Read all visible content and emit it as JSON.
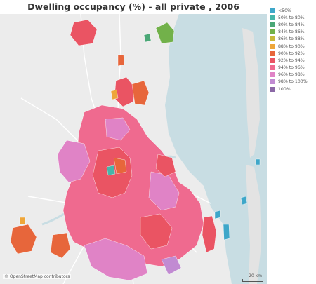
{
  "title": "Dwelling occupancy (%) - all private , 2006",
  "map": {
    "attribution": "© OpenStreetMap contributors",
    "scale_label": "20 km",
    "base_colors": {
      "land": "#ececec",
      "water": "#c8dde3",
      "roads": "#ffffff",
      "region_outline": "#ffffff"
    }
  },
  "legend": {
    "items": [
      {
        "label": "<50%",
        "color": "#3ea7c9"
      },
      {
        "label": "50% to 80%",
        "color": "#45b6a9"
      },
      {
        "label": "80% to 84%",
        "color": "#4aa776"
      },
      {
        "label": "84% to 86%",
        "color": "#72b14a"
      },
      {
        "label": "86% to 88%",
        "color": "#c9b93b"
      },
      {
        "label": "88% to 90%",
        "color": "#eea63a"
      },
      {
        "label": "90% to 92%",
        "color": "#e7663b"
      },
      {
        "label": "92% to 94%",
        "color": "#ea5463"
      },
      {
        "label": "94% to 96%",
        "color": "#ef6a8f"
      },
      {
        "label": "96% to 98%",
        "color": "#e083c6"
      },
      {
        "label": "98% to 100%",
        "color": "#c18bd2"
      },
      {
        "label": "100%",
        "color": "#8b68a6"
      }
    ]
  }
}
